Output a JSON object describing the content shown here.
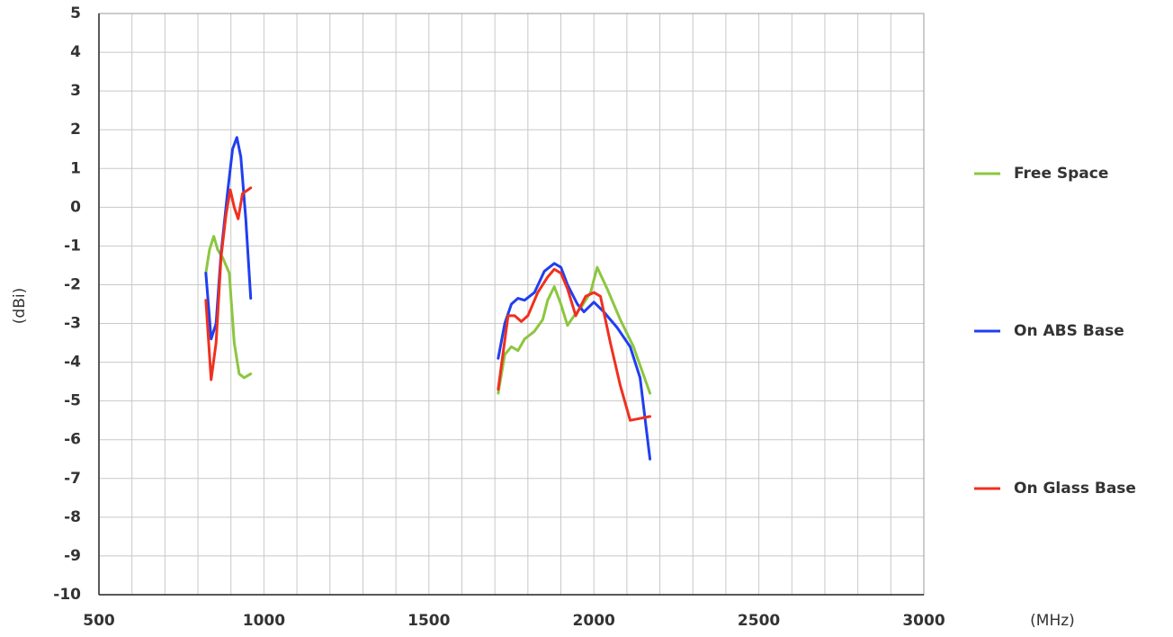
{
  "chart_data": {
    "type": "line",
    "x_label": "(MHz)",
    "y_label": "(dBi)",
    "xlim": [
      500,
      3000
    ],
    "xticks": [
      500,
      1000,
      1500,
      2000,
      2500,
      3000
    ],
    "xminor": [
      600,
      700,
      800,
      900,
      1100,
      1200,
      1300,
      1400,
      1600,
      1700,
      1800,
      1900,
      2100,
      2200,
      2300,
      2400,
      2600,
      2700,
      2800,
      2900
    ],
    "ylim": [
      -10,
      5
    ],
    "yticks": [
      5,
      4,
      3,
      2,
      1,
      0,
      -1,
      -2,
      -3,
      -4,
      -5,
      -6,
      -7,
      -8,
      -9,
      -10
    ],
    "grid": true,
    "legend": "right",
    "series": [
      {
        "name": "Free Space",
        "color": "#8cc63f",
        "x": [
          824,
          835,
          848,
          860,
          875,
          895,
          910,
          925,
          940,
          960,
          null,
          1710,
          1730,
          1750,
          1770,
          1790,
          1820,
          1845,
          1860,
          1880,
          1900,
          1920,
          1940,
          1960,
          1990,
          2010,
          2040,
          2080,
          2120,
          2170
        ],
        "values": [
          -1.7,
          -1.1,
          -0.75,
          -1.1,
          -1.3,
          -1.7,
          -3.5,
          -4.3,
          -4.4,
          -4.3,
          null,
          -4.8,
          -3.8,
          -3.6,
          -3.7,
          -3.4,
          -3.2,
          -2.9,
          -2.4,
          -2.05,
          -2.5,
          -3.05,
          -2.8,
          -2.6,
          -2.2,
          -1.55,
          -2.1,
          -2.9,
          -3.6,
          -4.8
        ]
      },
      {
        "name": "On ABS Base",
        "color": "#1f3ff0",
        "x": [
          824,
          840,
          855,
          870,
          890,
          905,
          918,
          930,
          945,
          960,
          null,
          1710,
          1730,
          1750,
          1770,
          1790,
          1820,
          1850,
          1880,
          1900,
          1920,
          1950,
          1970,
          2000,
          2030,
          2070,
          2110,
          2140,
          2170
        ],
        "values": [
          -1.7,
          -3.4,
          -3.0,
          -1.2,
          0.4,
          1.5,
          1.8,
          1.3,
          -0.3,
          -2.35,
          null,
          -3.9,
          -3.0,
          -2.5,
          -2.35,
          -2.4,
          -2.2,
          -1.65,
          -1.45,
          -1.55,
          -2.0,
          -2.5,
          -2.7,
          -2.45,
          -2.7,
          -3.1,
          -3.6,
          -4.4,
          -6.5
        ]
      },
      {
        "name": "On Glass Base",
        "color": "#f0301f",
        "x": [
          824,
          840,
          855,
          870,
          885,
          898,
          910,
          922,
          935,
          960,
          null,
          1710,
          1740,
          1760,
          1780,
          1800,
          1830,
          1860,
          1880,
          1900,
          1920,
          1945,
          1975,
          2000,
          2020,
          2050,
          2080,
          2110,
          2140,
          2170
        ],
        "values": [
          -2.4,
          -4.45,
          -3.5,
          -1.3,
          -0.2,
          0.45,
          0.0,
          -0.3,
          0.35,
          0.5,
          null,
          -4.7,
          -2.8,
          -2.8,
          -2.95,
          -2.8,
          -2.2,
          -1.8,
          -1.6,
          -1.7,
          -2.1,
          -2.8,
          -2.3,
          -2.2,
          -2.3,
          -3.5,
          -4.6,
          -5.5,
          -5.45,
          -5.4
        ]
      }
    ]
  }
}
